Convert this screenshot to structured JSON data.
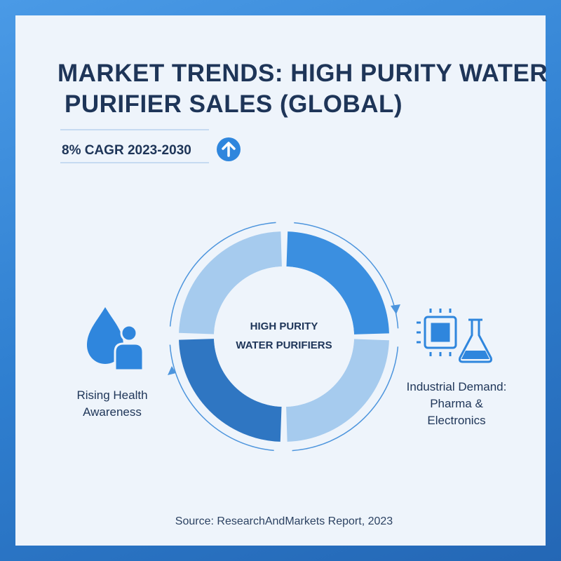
{
  "title_lines": [
    "MARKET TRENDS: HIGH PURITY WATER",
    "PURIFIER SALES (GLOBAL)"
  ],
  "highlight": "8% CAGR 2023-2030",
  "cycle": {
    "center_lines": [
      "HIGH PURITY",
      "WATER PURIFIERS"
    ]
  },
  "drivers": [
    {
      "label_lines": [
        "Rising Health",
        "Awareness"
      ]
    },
    {
      "label_lines": [
        "Industrial Demand:",
        "Pharma &",
        "Electronics"
      ]
    }
  ],
  "source": "Source: ResearchAndMarkets Report, 2023"
}
